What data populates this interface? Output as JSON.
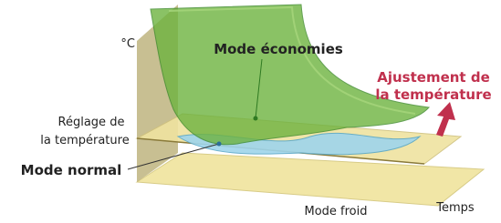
{
  "axis_unit": "°C",
  "labels": {
    "eco_mode": "Mode économies",
    "adjustment": [
      "Ajustement de",
      "la température"
    ],
    "setting": [
      "Réglage de",
      "la température"
    ],
    "normal_mode": "Mode normal",
    "cold_mode": "Mode froid",
    "time": "Temps"
  }
}
